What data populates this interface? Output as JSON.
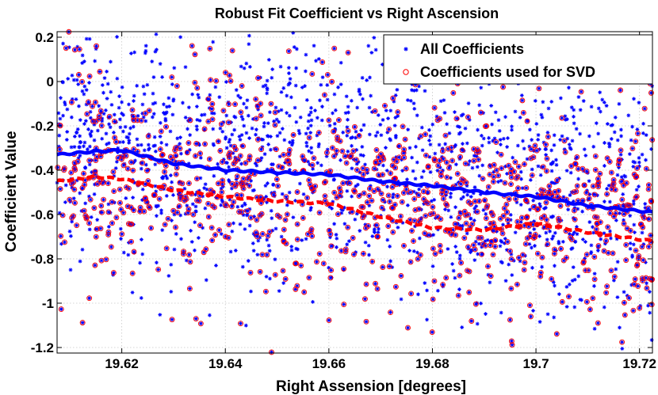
{
  "chart_data": {
    "type": "scatter",
    "title": "Robust Fit Coefficient vs Right Ascension",
    "xlabel": "Right Assension [degrees]",
    "ylabel": "Coefficient Value",
    "xlim": [
      19.6075,
      19.7225
    ],
    "ylim": [
      -1.225,
      0.225
    ],
    "xticks": [
      19.62,
      19.64,
      19.66,
      19.68,
      19.7,
      19.72
    ],
    "xtick_labels": [
      "19.62",
      "19.64",
      "19.66",
      "19.68",
      "19.7",
      "19.72"
    ],
    "yticks": [
      0.2,
      0,
      -0.2,
      -0.4,
      -0.6,
      -0.8,
      -1,
      -1.2
    ],
    "ytick_labels": [
      "0.2",
      "0",
      "-0.2",
      "-0.4",
      "-0.6",
      "-0.8",
      "-1",
      "-1.2"
    ],
    "grid": true,
    "legend_position": "top-right",
    "series": [
      {
        "name": "All Coefficients",
        "marker": "asterisk",
        "color": "#0000ff",
        "point_count": 2400,
        "trend": {
          "x": [
            19.6075,
            19.62,
            19.64,
            19.66,
            19.68,
            19.7,
            19.7225
          ],
          "y": [
            -0.33,
            -0.315,
            -0.4,
            -0.42,
            -0.47,
            -0.52,
            -0.59
          ]
        },
        "scatter_std": 0.27
      },
      {
        "name": "Coefficients used for SVD",
        "marker": "circle",
        "color": "#ff0000",
        "point_count": 1000,
        "trend": {
          "x": [
            19.6075,
            19.62,
            19.64,
            19.66,
            19.68,
            19.7,
            19.7225
          ],
          "y": [
            -0.45,
            -0.43,
            -0.52,
            -0.55,
            -0.66,
            -0.67,
            -0.72
          ]
        }
      }
    ],
    "lines": [
      {
        "name": "All Coefficients running median",
        "color": "#0000ff",
        "style": "solid",
        "x": [
          19.6075,
          19.615,
          19.62,
          19.63,
          19.64,
          19.65,
          19.66,
          19.67,
          19.68,
          19.69,
          19.7,
          19.71,
          19.7225
        ],
        "y": [
          -0.33,
          -0.315,
          -0.31,
          -0.37,
          -0.4,
          -0.41,
          -0.42,
          -0.45,
          -0.47,
          -0.5,
          -0.52,
          -0.56,
          -0.59
        ]
      },
      {
        "name": "Coefficients used for SVD running median",
        "color": "#ff0000",
        "style": "dashed",
        "x": [
          19.6075,
          19.615,
          19.62,
          19.63,
          19.64,
          19.65,
          19.66,
          19.67,
          19.68,
          19.69,
          19.7,
          19.71,
          19.7225
        ],
        "y": [
          -0.45,
          -0.43,
          -0.44,
          -0.49,
          -0.52,
          -0.54,
          -0.55,
          -0.61,
          -0.66,
          -0.67,
          -0.64,
          -0.68,
          -0.72
        ]
      }
    ]
  }
}
